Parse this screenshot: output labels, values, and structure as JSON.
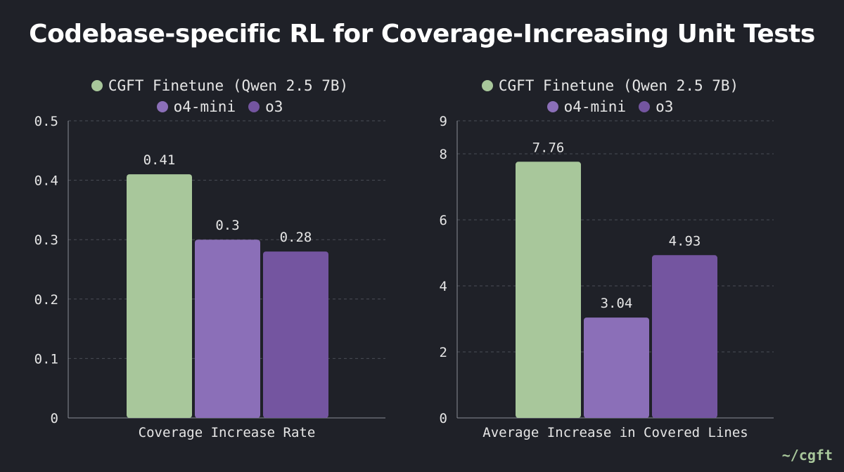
{
  "title": "Codebase-specific RL for Coverage-Increasing Unit Tests",
  "brand": "~/cgft",
  "colors": {
    "background": "#1f2128",
    "cgft": "#a8c79b",
    "o4mini": "#8b6fb8",
    "o3": "#7455a0",
    "grid": "#4a4d56",
    "text": "#e6e6e6"
  },
  "legend": [
    {
      "label": "CGFT Finetune (Qwen 2.5 7B)",
      "color": "#a8c79b"
    },
    {
      "label": "o4-mini",
      "color": "#8b6fb8"
    },
    {
      "label": "o3",
      "color": "#7455a0"
    }
  ],
  "chart_data": [
    {
      "type": "bar",
      "categories": [
        "Coverage Increase Rate"
      ],
      "series": [
        {
          "name": "CGFT Finetune (Qwen 2.5 7B)",
          "values": [
            0.41
          ],
          "label": "0.41"
        },
        {
          "name": "o4-mini",
          "values": [
            0.3
          ],
          "label": "0.3"
        },
        {
          "name": "o3",
          "values": [
            0.28
          ],
          "label": "0.28"
        }
      ],
      "xlabel": "Coverage Increase Rate",
      "ylabel": "",
      "ylim": [
        0,
        0.5
      ],
      "yticks": [
        0,
        0.1,
        0.2,
        0.3,
        0.4,
        0.5
      ],
      "ytick_labels": [
        "0",
        "0.1",
        "0.2",
        "0.3",
        "0.4",
        "0.5"
      ]
    },
    {
      "type": "bar",
      "categories": [
        "Average Increase in Covered Lines"
      ],
      "series": [
        {
          "name": "CGFT Finetune (Qwen 2.5 7B)",
          "values": [
            7.76
          ],
          "label": "7.76"
        },
        {
          "name": "o4-mini",
          "values": [
            3.04
          ],
          "label": "3.04"
        },
        {
          "name": "o3",
          "values": [
            4.93
          ],
          "label": "4.93"
        }
      ],
      "xlabel": "Average Increase in Covered Lines",
      "ylabel": "",
      "ylim": [
        0,
        9
      ],
      "yticks": [
        0,
        2,
        4,
        6,
        8,
        9
      ],
      "ytick_labels": [
        "0",
        "2",
        "4",
        "6",
        "8",
        "9"
      ]
    }
  ]
}
